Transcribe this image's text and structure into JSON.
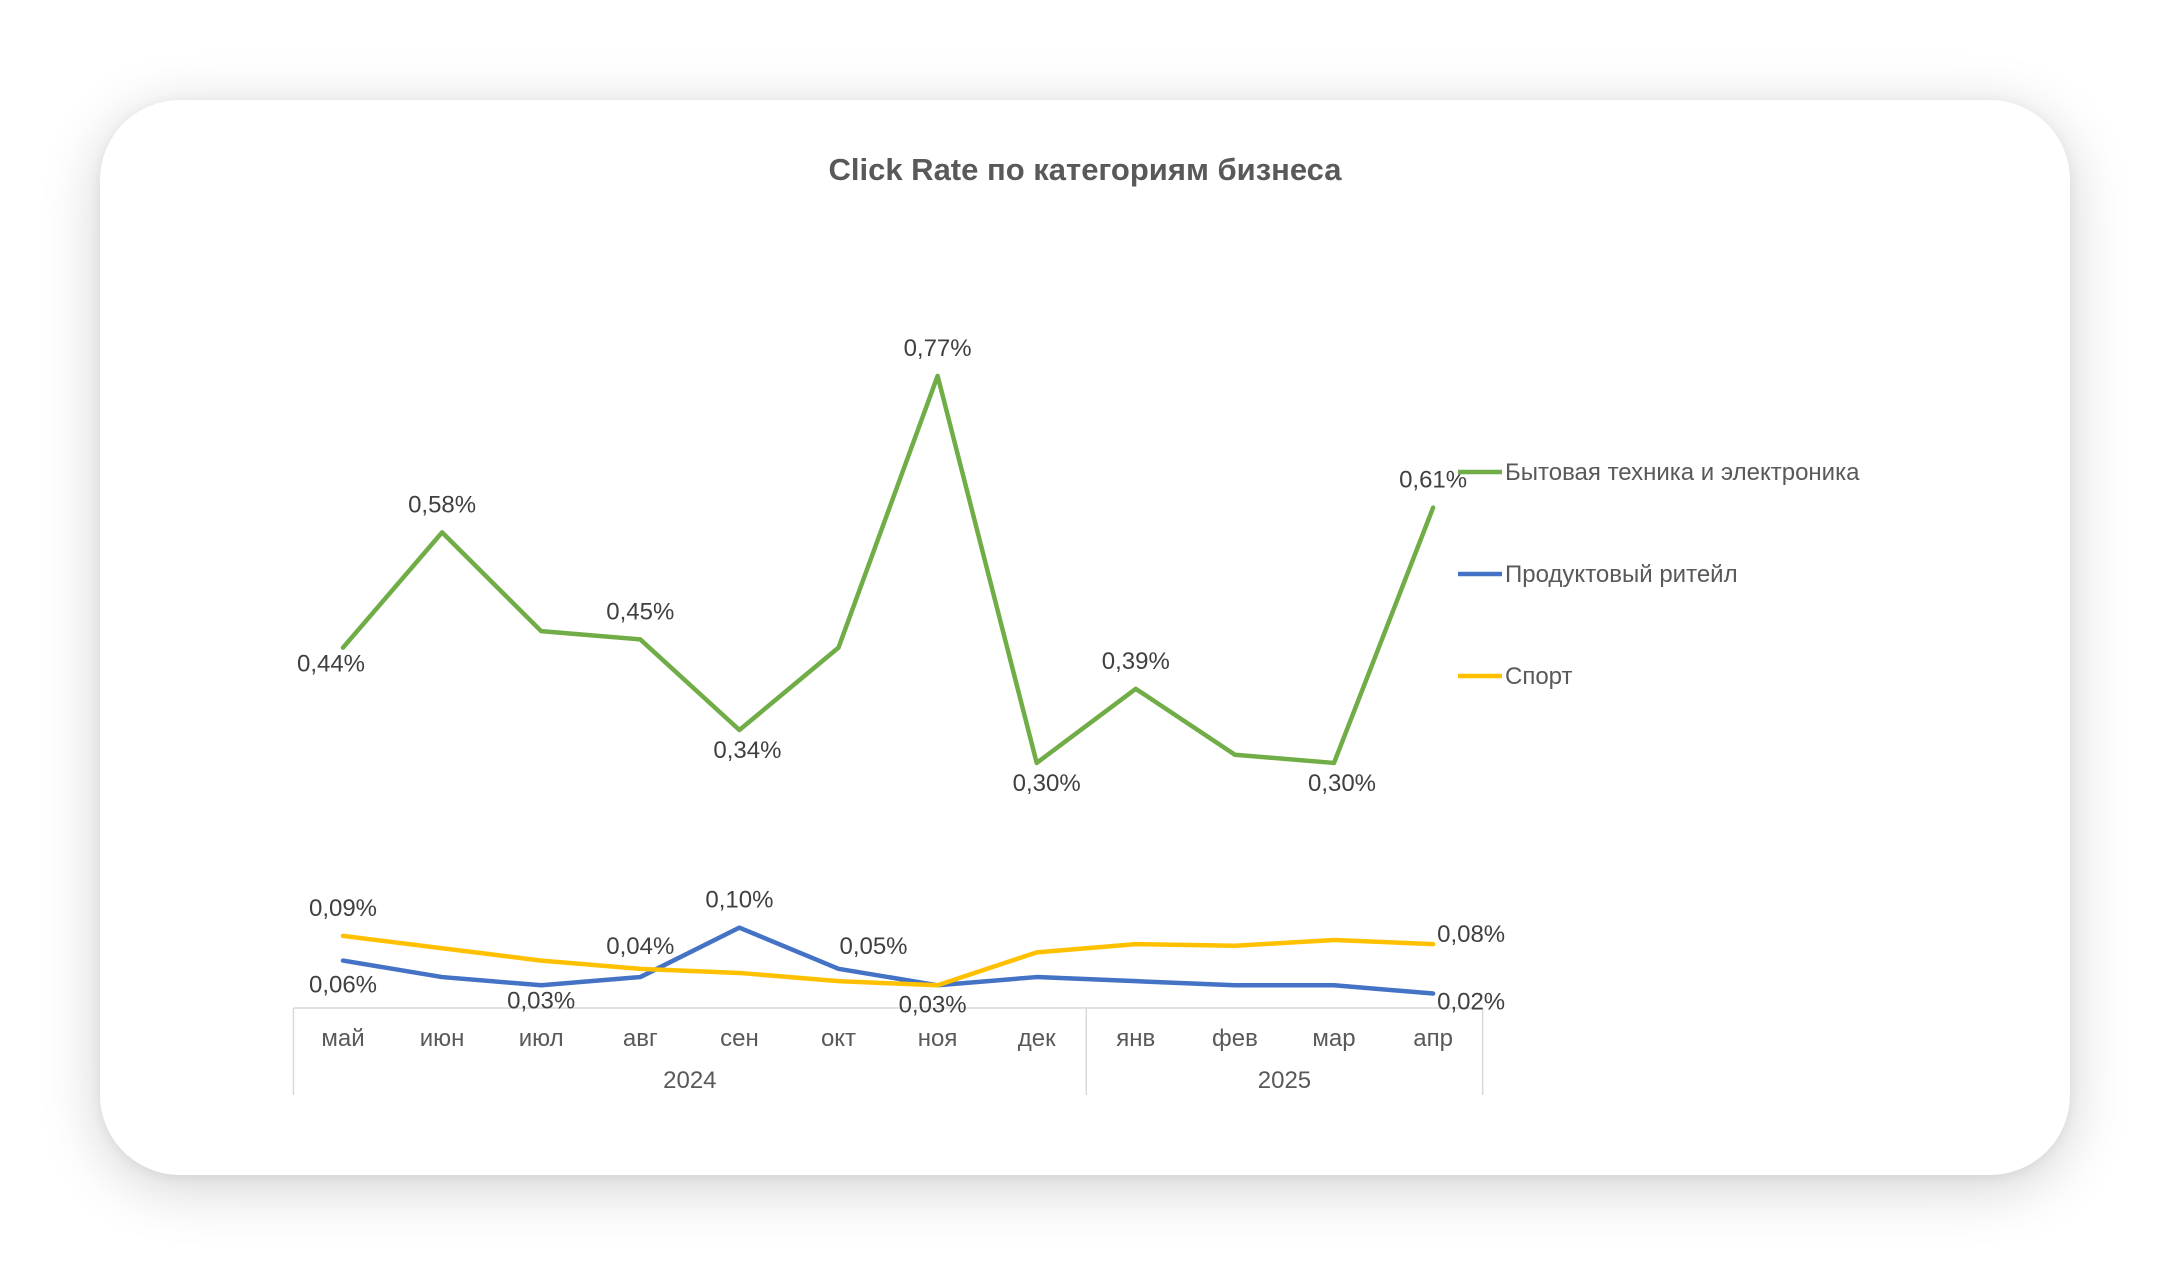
{
  "chart_data": {
    "type": "line",
    "title": "Click Rate по категориям бизнеса",
    "categories": [
      "май",
      "июн",
      "июл",
      "авг",
      "сен",
      "окт",
      "ноя",
      "дек",
      "янв",
      "фев",
      "мар",
      "апр"
    ],
    "category_groups": [
      {
        "label": "2024",
        "count": 8
      },
      {
        "label": "2025",
        "count": 4
      }
    ],
    "series": [
      {
        "name": "Бытовая техника и электроника",
        "color": "#70AD47",
        "values": [
          0.44,
          0.58,
          0.46,
          0.45,
          0.34,
          0.44,
          0.77,
          0.3,
          0.39,
          0.31,
          0.3,
          0.61
        ],
        "data_labels": [
          "0,44%",
          "0,58%",
          "",
          "0,45%",
          "0,34%",
          "",
          "0,77%",
          "0,30%",
          "0,39%",
          "",
          "0,30%",
          "0,61%"
        ]
      },
      {
        "name": "Продуктовый ритейл",
        "color": "#4472C4",
        "values": [
          0.06,
          0.04,
          0.03,
          0.04,
          0.1,
          0.05,
          0.03,
          0.04,
          0.035,
          0.03,
          0.03,
          0.02
        ],
        "data_labels": [
          "0,06%",
          "",
          "0,03%",
          "0,04%",
          "0,10%",
          "0,05%",
          "",
          "",
          "",
          "",
          "",
          "0,02%"
        ]
      },
      {
        "name": "Спорт",
        "color": "#FFC000",
        "values": [
          0.09,
          0.075,
          0.06,
          0.05,
          0.045,
          0.035,
          0.03,
          0.07,
          0.08,
          0.078,
          0.085,
          0.08
        ],
        "data_labels": [
          "0,09%",
          "",
          "",
          "",
          "",
          "",
          "0,03%",
          "",
          "",
          "",
          "",
          "0,08%"
        ]
      }
    ],
    "ylim": [
      0,
      0.85
    ],
    "y_axis_visible": false,
    "grid": false,
    "legend_position": "right",
    "xlabel": "",
    "ylabel": ""
  }
}
